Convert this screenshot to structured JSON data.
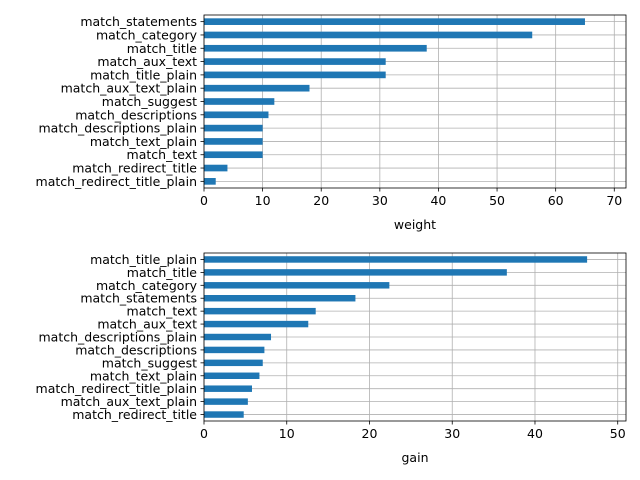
{
  "chart_data": [
    {
      "type": "bar",
      "orientation": "horizontal",
      "xlabel": "weight",
      "ylabel": "",
      "title": "",
      "xlim": [
        0,
        72
      ],
      "xticks": [
        0,
        10,
        20,
        30,
        40,
        50,
        60,
        70
      ],
      "grid": true,
      "bar_color": "#1f77b4",
      "categories": [
        "match_redirect_title_plain",
        "match_redirect_title",
        "match_text",
        "match_text_plain",
        "match_descriptions_plain",
        "match_descriptions",
        "match_suggest",
        "match_aux_text_plain",
        "match_title_plain",
        "match_aux_text",
        "match_title",
        "match_category",
        "match_statements"
      ],
      "values": [
        2,
        4,
        10,
        10,
        10,
        11,
        12,
        18,
        31,
        31,
        38,
        56,
        65
      ]
    },
    {
      "type": "bar",
      "orientation": "horizontal",
      "xlabel": "gain",
      "ylabel": "",
      "title": "",
      "xlim": [
        0,
        51
      ],
      "xticks": [
        0,
        10,
        20,
        30,
        40,
        50
      ],
      "grid": true,
      "bar_color": "#1f77b4",
      "categories": [
        "match_redirect_title",
        "match_aux_text_plain",
        "match_redirect_title_plain",
        "match_text_plain",
        "match_suggest",
        "match_descriptions",
        "match_descriptions_plain",
        "match_aux_text",
        "match_text",
        "match_statements",
        "match_category",
        "match_title",
        "match_title_plain"
      ],
      "values": [
        4.8,
        5.3,
        5.8,
        6.7,
        7.1,
        7.3,
        8.1,
        12.6,
        13.5,
        18.3,
        22.4,
        36.6,
        46.3
      ]
    }
  ]
}
